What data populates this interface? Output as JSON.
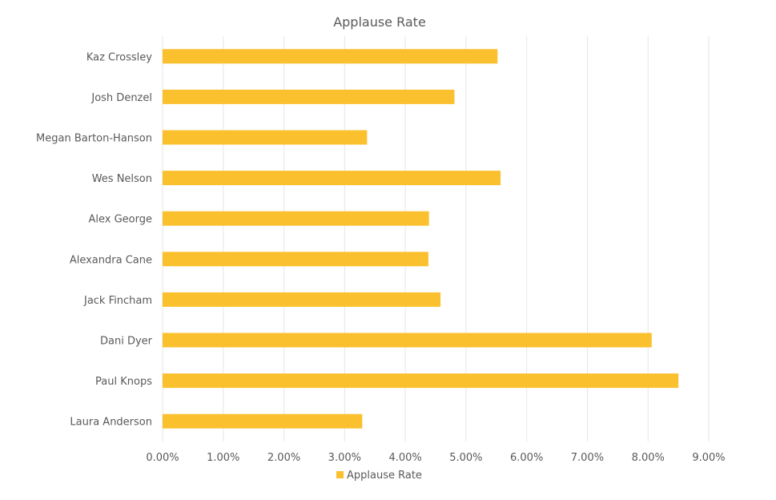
{
  "chart_data": {
    "type": "bar",
    "orientation": "horizontal",
    "title": "Applause Rate",
    "categories": [
      "Kaz Crossley",
      "Josh Denzel",
      "Megan Barton-Hanson",
      "Wes Nelson",
      "Alex George",
      "Alexandra Cane",
      "Jack Fincham",
      "Dani Dyer",
      "Paul Knops",
      "Laura Anderson"
    ],
    "series": [
      {
        "name": "Applause Rate",
        "color": "#FBC02D",
        "values": [
          5.52,
          4.81,
          3.37,
          5.57,
          4.39,
          4.38,
          4.58,
          8.06,
          8.5,
          3.29
        ]
      }
    ],
    "xlim": [
      0,
      9
    ],
    "xticks": [
      "0.00%",
      "1.00%",
      "2.00%",
      "3.00%",
      "4.00%",
      "5.00%",
      "6.00%",
      "7.00%",
      "8.00%",
      "9.00%"
    ],
    "grid": true,
    "legend": "bottom"
  }
}
